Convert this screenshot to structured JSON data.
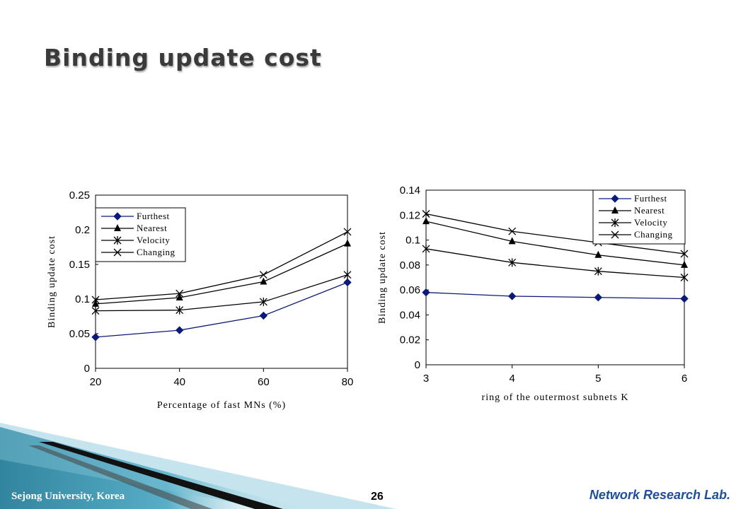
{
  "slide": {
    "title": "Binding update cost",
    "footer_left": "Sejong University, Korea",
    "page_number": "26",
    "lab_name": "Network Research Lab."
  },
  "chart_data": [
    {
      "type": "line",
      "x": [
        20,
        40,
        60,
        80
      ],
      "xlabel": "Percentage of fast MNs (%)",
      "ylabel": "Binding update cost",
      "xlim": [
        20,
        80
      ],
      "ylim": [
        0,
        0.25
      ],
      "yticks": [
        0,
        0.05,
        0.1,
        0.15,
        0.2,
        0.25
      ],
      "ytick_labels": [
        "0",
        "0.05",
        "0.1",
        "0.15",
        "0.2",
        "0.25"
      ],
      "xtick_labels": [
        "20",
        "40",
        "60",
        "80"
      ],
      "legend_position": "top-left",
      "grid": false,
      "series": [
        {
          "name": "Furthest",
          "marker": "diamond",
          "color": "#0b1a78",
          "values": [
            0.045,
            0.055,
            0.076,
            0.124
          ]
        },
        {
          "name": "Nearest",
          "marker": "triangle",
          "color": "#000000",
          "values": [
            0.093,
            0.102,
            0.125,
            0.18
          ]
        },
        {
          "name": "Velocity",
          "marker": "asterisk",
          "color": "#000000",
          "values": [
            0.083,
            0.084,
            0.096,
            0.135
          ]
        },
        {
          "name": "Changing",
          "marker": "x",
          "color": "#000000",
          "values": [
            0.099,
            0.108,
            0.135,
            0.197
          ]
        }
      ]
    },
    {
      "type": "line",
      "x": [
        3,
        4,
        5,
        6
      ],
      "xlabel": "ring of the outermost subnets K",
      "ylabel": "Binding update cost",
      "xlim": [
        3,
        6
      ],
      "ylim": [
        0,
        0.14
      ],
      "yticks": [
        0,
        0.02,
        0.04,
        0.06,
        0.08,
        0.1,
        0.12,
        0.14
      ],
      "ytick_labels": [
        "0",
        "0.02",
        "0.04",
        "0.06",
        "0.08",
        "0.1",
        "0.12",
        "0.14"
      ],
      "xtick_labels": [
        "3",
        "4",
        "5",
        "6"
      ],
      "legend_position": "top-right",
      "grid": false,
      "series": [
        {
          "name": "Furthest",
          "marker": "diamond",
          "color": "#0b1a78",
          "values": [
            0.058,
            0.055,
            0.054,
            0.053
          ]
        },
        {
          "name": "Nearest",
          "marker": "triangle",
          "color": "#000000",
          "values": [
            0.115,
            0.099,
            0.088,
            0.08
          ]
        },
        {
          "name": "Velocity",
          "marker": "asterisk",
          "color": "#000000",
          "values": [
            0.093,
            0.082,
            0.075,
            0.07
          ]
        },
        {
          "name": "Changing",
          "marker": "x",
          "color": "#000000",
          "values": [
            0.121,
            0.107,
            0.098,
            0.089
          ]
        }
      ]
    }
  ]
}
